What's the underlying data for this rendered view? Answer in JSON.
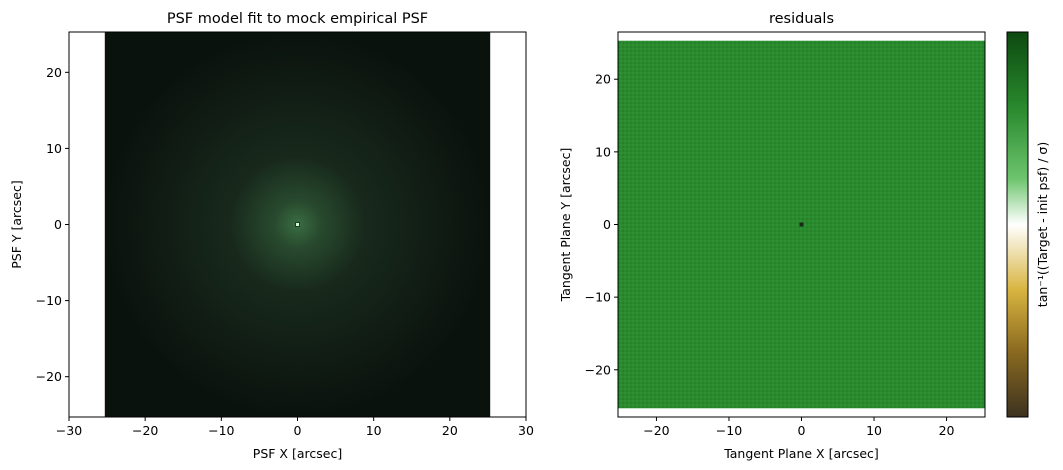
{
  "chart_data": [
    {
      "type": "heatmap",
      "title": "PSF model fit to mock empirical PSF",
      "xlabel": "PSF X [arcsec]",
      "ylabel": "PSF Y [arcsec]",
      "xlim": [
        -30,
        30
      ],
      "ylim": [
        -25.3,
        25.3
      ],
      "image_extent": {
        "x": [
          -25.3,
          25.3
        ],
        "y": [
          -25.3,
          25.3
        ]
      },
      "xticks": [
        -30,
        -20,
        -10,
        0,
        10,
        20,
        30
      ],
      "xtick_labels": [
        "−30",
        "−20",
        "−10",
        "0",
        "10",
        "20",
        "30"
      ],
      "yticks": [
        -20,
        -10,
        0,
        10,
        20
      ],
      "ytick_labels": [
        "−20",
        "−10",
        "0",
        "10",
        "20"
      ],
      "grid": false,
      "description_values": {
        "peak_position": [
          0,
          0
        ]
      },
      "colors": {
        "background": "#0a120d",
        "halo": "#2f5a36",
        "peak": "#d8f5dc"
      }
    },
    {
      "type": "heatmap",
      "title": "residuals",
      "xlabel": "Tangent Plane X [arcsec]",
      "ylabel": "Tangent Plane Y [arcsec]",
      "xlim": [
        -25.3,
        25.3
      ],
      "ylim": [
        -26.5,
        26.5
      ],
      "image_extent": {
        "x": [
          -25.3,
          25.3
        ],
        "y": [
          -25.3,
          25.3
        ]
      },
      "xticks": [
        -20,
        -10,
        0,
        10,
        20
      ],
      "xtick_labels": [
        "−20",
        "−10",
        "0",
        "10",
        "20"
      ],
      "yticks": [
        -20,
        -10,
        0,
        10,
        20
      ],
      "ytick_labels": [
        "−20",
        "−10",
        "0",
        "10",
        "20"
      ],
      "grid": false,
      "description_values": {
        "central_pixel": [
          0,
          0
        ]
      },
      "colors": {
        "fill": "#2a8a2e",
        "center": "#1a2a1a"
      },
      "colorbar": {
        "label": "tan⁻¹((Target - init psf) / σ)",
        "colormap": [
          "#3d3220",
          "#8a6a20",
          "#d8b440",
          "#ffffff",
          "#6cc46c",
          "#2a8a2e",
          "#0d4a10"
        ]
      }
    }
  ]
}
